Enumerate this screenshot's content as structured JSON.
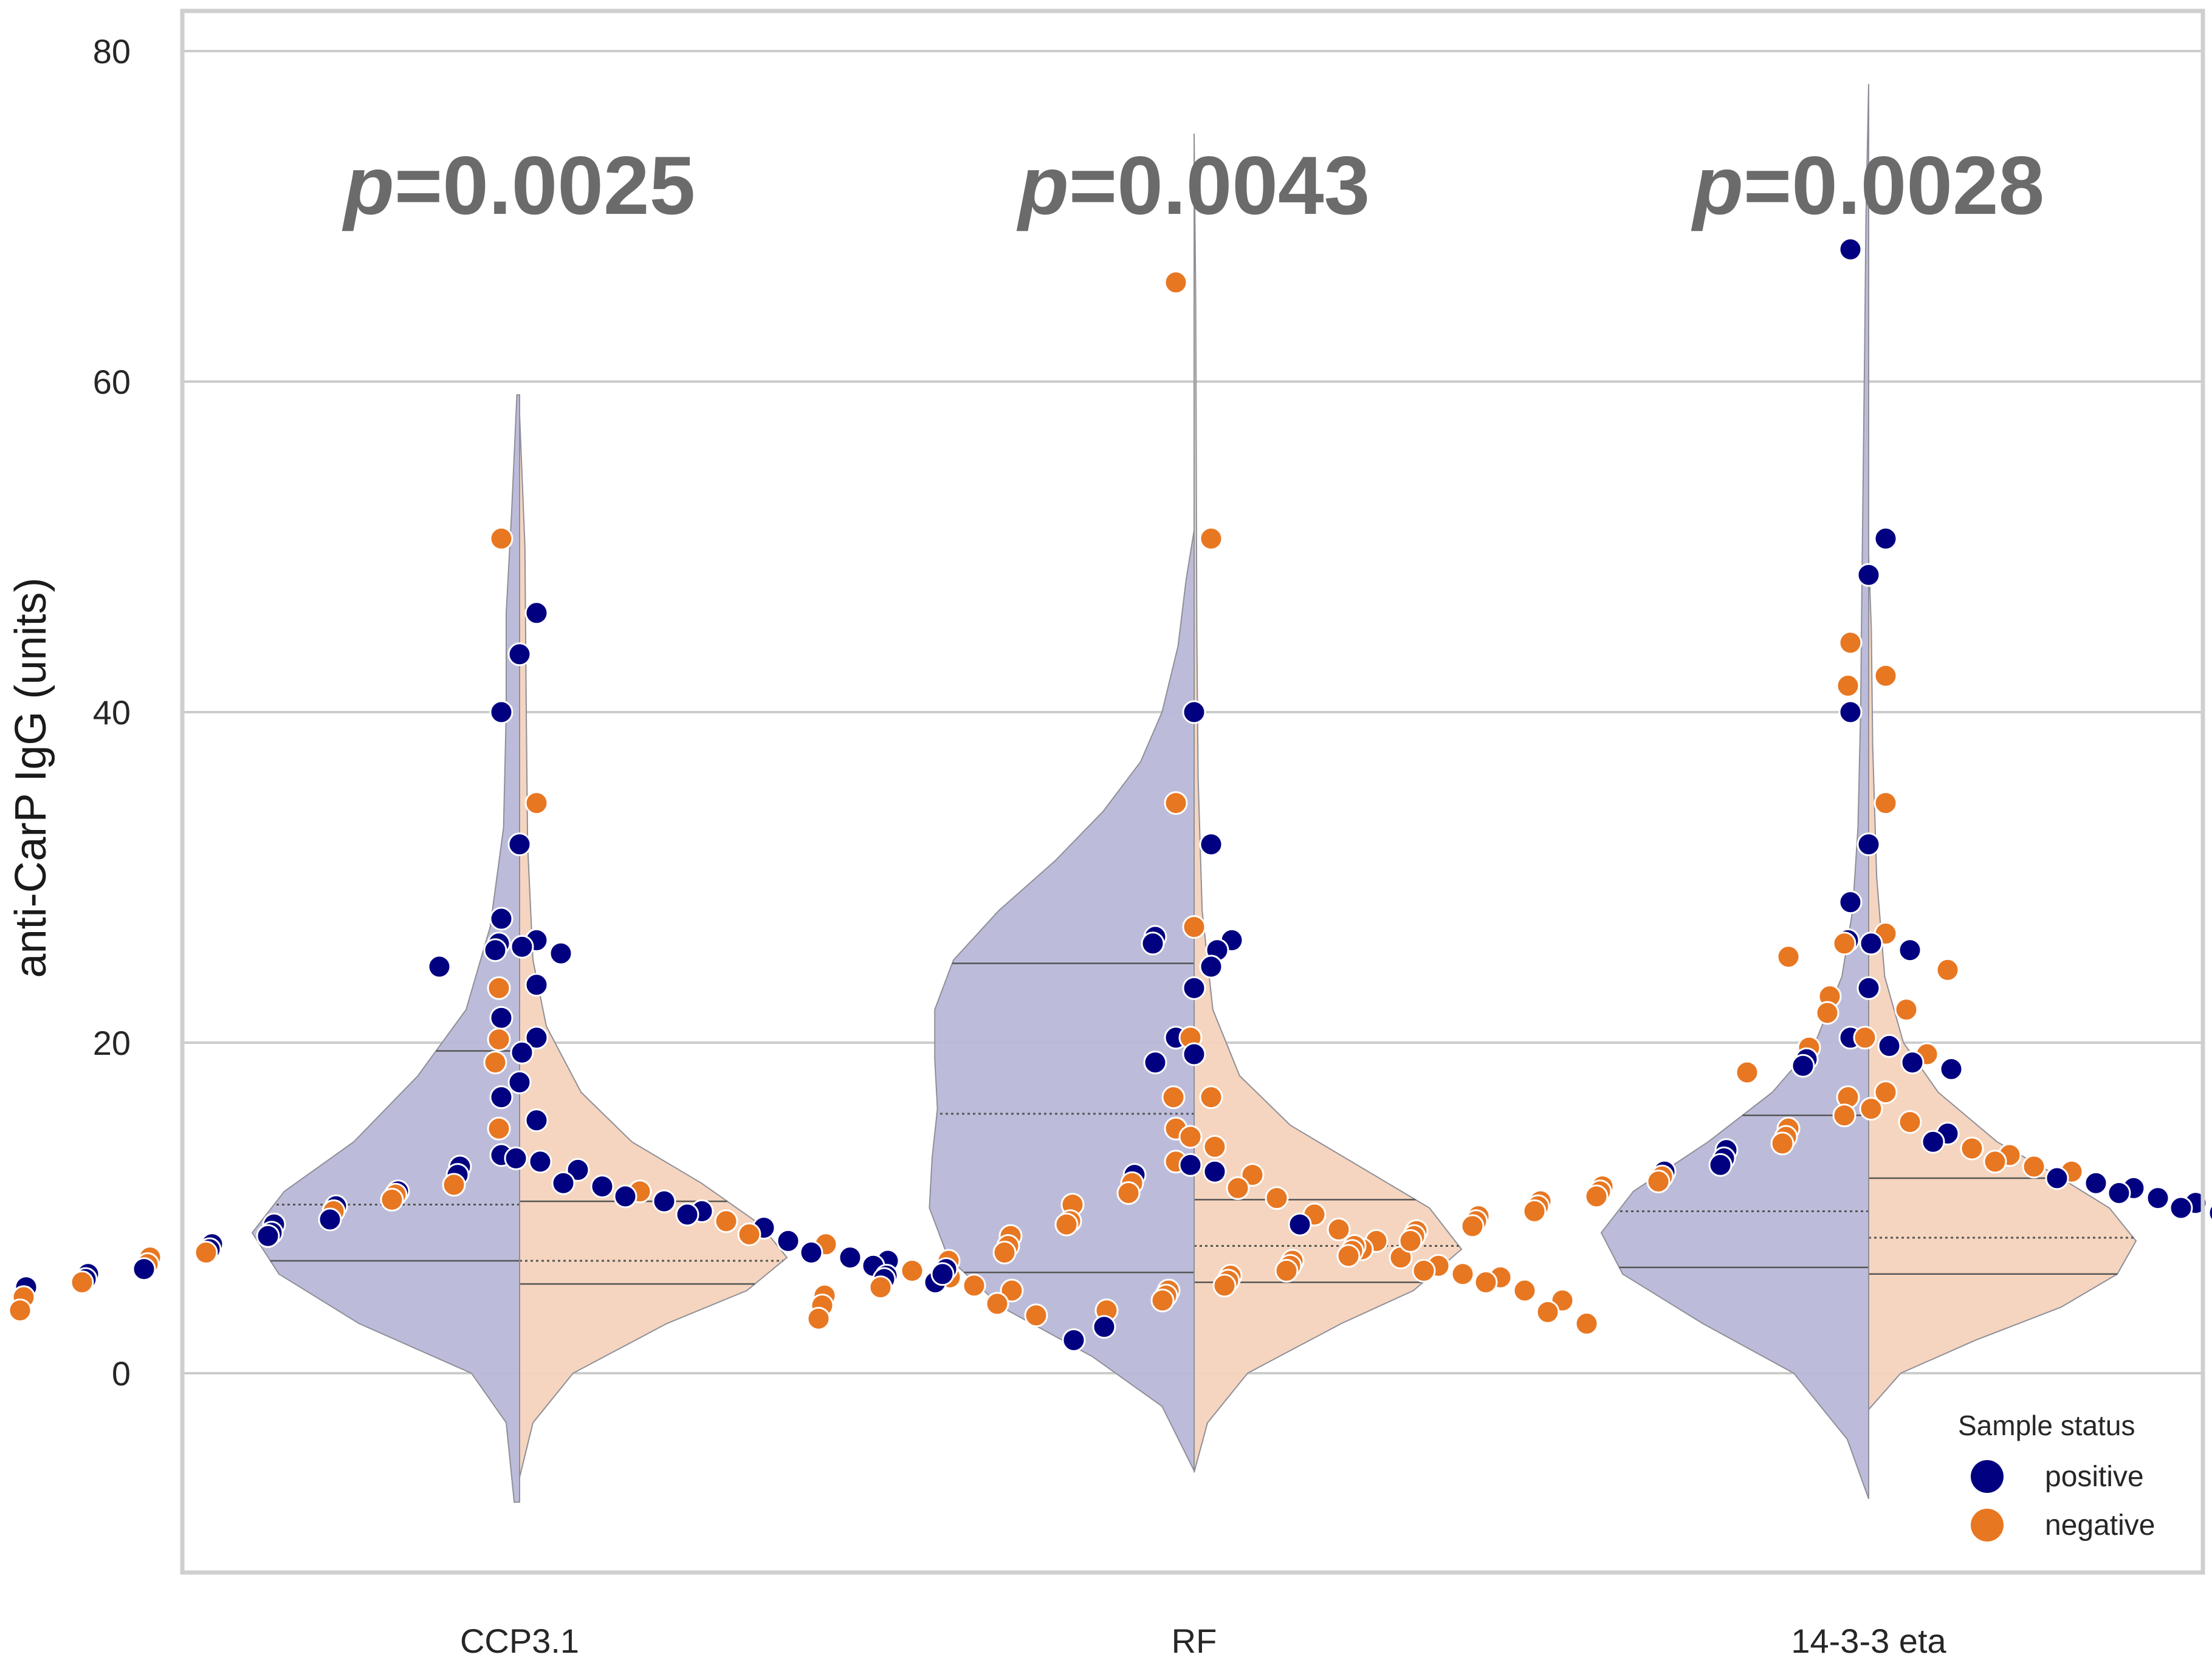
{
  "chart_data": {
    "type": "violin",
    "ylabel": "anti-CarP IgG (units)",
    "xlabel": "",
    "ylim": [
      -12,
      82
    ],
    "yticks": [
      0,
      20,
      40,
      60,
      80
    ],
    "ytick_labels": [
      "0",
      "20",
      "40",
      "60",
      "80"
    ],
    "grid": "horizontal",
    "categories": [
      "CCP3.1",
      "RF",
      "14-3-3 eta"
    ],
    "p_values": [
      {
        "prefix": "p",
        "value": "=0.0025"
      },
      {
        "prefix": "p",
        "value": "=0.0043"
      },
      {
        "prefix": "p",
        "value": "=0.0028"
      }
    ],
    "legend": {
      "title": "Sample status",
      "placement": "bottom-right",
      "entries": [
        {
          "label": "positive",
          "color": "#000080"
        },
        {
          "label": "negative",
          "color": "#e87722"
        }
      ]
    },
    "colors": {
      "positive_point": "#000080",
      "negative_point": "#e87722",
      "positive_violin": "#b8b8d8",
      "negative_violin": "#f4d3bc",
      "pvalue_text": "#6b6b6b"
    },
    "violins": [
      {
        "category": "CCP3.1",
        "positive": {
          "quartiles": [
            6.8,
            10.2,
            19.5
          ],
          "density": [
            [
              -7.8,
              0.02
            ],
            [
              -3,
              0.05
            ],
            [
              0,
              0.18
            ],
            [
              3,
              0.6
            ],
            [
              6,
              0.9
            ],
            [
              8.5,
              1.0
            ],
            [
              11,
              0.88
            ],
            [
              14,
              0.62
            ],
            [
              18,
              0.38
            ],
            [
              22,
              0.2
            ],
            [
              27,
              0.11
            ],
            [
              33,
              0.06
            ],
            [
              40,
              0.05
            ],
            [
              46,
              0.05
            ],
            [
              52,
              0.03
            ],
            [
              59.2,
              0.01
            ]
          ]
        },
        "negative": {
          "quartiles": [
            5.4,
            6.8,
            10.4
          ],
          "density": [
            [
              -6.3,
              0.0
            ],
            [
              -3,
              0.05
            ],
            [
              0,
              0.2
            ],
            [
              3,
              0.55
            ],
            [
              5,
              0.85
            ],
            [
              7,
              1.0
            ],
            [
              9,
              0.9
            ],
            [
              11.5,
              0.68
            ],
            [
              14,
              0.42
            ],
            [
              17,
              0.23
            ],
            [
              21,
              0.1
            ],
            [
              25,
              0.05
            ],
            [
              32,
              0.03
            ],
            [
              40,
              0.025
            ],
            [
              50,
              0.02
            ],
            [
              58,
              0.0
            ]
          ]
        },
        "positive_points": [
          46,
          43.5,
          40,
          32,
          27.5,
          26.2,
          26,
          25.8,
          25.6,
          25.4,
          24.6,
          23.5,
          21.5,
          20.3,
          19.4,
          17.6,
          16.7,
          15.3,
          13.2,
          13,
          12.8,
          12.5,
          12.3,
          12,
          11.5,
          11.3,
          11,
          10.7,
          10.4,
          10.1,
          9.8,
          9.6,
          9.3,
          9,
          8.8,
          8.5,
          8.3,
          8,
          7.8,
          7.5,
          7.3,
          7,
          6.8,
          6.5,
          6.3,
          6,
          5.7,
          5.5,
          5.2,
          2
        ],
        "negative_points": [
          50.5,
          34.5,
          23.3,
          20.2,
          18.8,
          14.8,
          11.4,
          11,
          10.8,
          10.5,
          9.8,
          9.2,
          8.4,
          7.8,
          7.3,
          7,
          6.6,
          6.2,
          5.8,
          5.5,
          5.3,
          5,
          4.6,
          4.2,
          3.8,
          3.5,
          2.8
        ]
      },
      {
        "category": "RF",
        "positive": {
          "quartiles": [
            6.1,
            15.7,
            24.8
          ],
          "density": [
            [
              -5.9,
              0.0
            ],
            [
              -2,
              0.12
            ],
            [
              1,
              0.38
            ],
            [
              4,
              0.72
            ],
            [
              7,
              0.92
            ],
            [
              10,
              0.99
            ],
            [
              13,
              0.98
            ],
            [
              16,
              0.96
            ],
            [
              19,
              0.97
            ],
            [
              22,
              0.97
            ],
            [
              25,
              0.9
            ],
            [
              28,
              0.73
            ],
            [
              31,
              0.52
            ],
            [
              34,
              0.34
            ],
            [
              37,
              0.2
            ],
            [
              40,
              0.12
            ],
            [
              44,
              0.06
            ],
            [
              48,
              0.03
            ],
            [
              51,
              0.0
            ]
          ]
        },
        "negative": {
          "quartiles": [
            5.5,
            7.7,
            10.5
          ],
          "density": [
            [
              -6,
              0.0
            ],
            [
              -3,
              0.05
            ],
            [
              0,
              0.2
            ],
            [
              3,
              0.55
            ],
            [
              5,
              0.82
            ],
            [
              7.5,
              1.0
            ],
            [
              10,
              0.88
            ],
            [
              12.5,
              0.62
            ],
            [
              15,
              0.36
            ],
            [
              18,
              0.17
            ],
            [
              22,
              0.07
            ],
            [
              28,
              0.03
            ],
            [
              36,
              0.015
            ],
            [
              45,
              0.01
            ],
            [
              55,
              0.008
            ],
            [
              65,
              0.006
            ],
            [
              75,
              0.0
            ]
          ]
        },
        "positive_points": [
          40,
          32,
          26.4,
          26.2,
          26,
          25.6,
          24.6,
          23.3,
          20.3,
          19.3,
          18.8,
          12.6,
          12.2,
          12,
          9,
          6.3,
          6,
          5.9,
          5.7
        ],
        "negative_points": [
          66,
          50.5,
          34.5,
          27,
          20.3,
          16.7,
          16.7,
          14.8,
          14.3,
          13.7,
          12.8,
          12,
          11.5,
          11.2,
          10.9,
          10.6,
          10.2,
          9.6,
          9.2,
          9,
          8.7,
          8.3,
          8,
          7.7,
          7.5,
          7.3,
          7,
          6.8,
          6.5,
          6.2,
          6,
          5.8,
          5.5,
          5.2,
          5,
          4.7,
          4.4,
          4.1,
          3.7,
          3.3,
          3
        ]
      },
      {
        "category": "14-3-3 eta",
        "positive": {
          "quartiles": [
            6.4,
            9.8,
            15.6
          ],
          "density": [
            [
              -7.6,
              0.0
            ],
            [
              -4,
              0.08
            ],
            [
              0,
              0.28
            ],
            [
              3,
              0.62
            ],
            [
              6,
              0.92
            ],
            [
              8.5,
              1.0
            ],
            [
              11,
              0.88
            ],
            [
              14,
              0.6
            ],
            [
              17,
              0.36
            ],
            [
              20,
              0.2
            ],
            [
              24,
              0.1
            ],
            [
              28,
              0.06
            ],
            [
              33,
              0.04
            ],
            [
              40,
              0.03
            ],
            [
              48,
              0.025
            ],
            [
              55,
              0.02
            ],
            [
              62,
              0.015
            ],
            [
              70,
              0.01
            ],
            [
              78,
              0.0
            ]
          ]
        },
        "negative": {
          "quartiles": [
            6,
            8.2,
            11.8
          ],
          "density": [
            [
              -2.2,
              0.0
            ],
            [
              0,
              0.12
            ],
            [
              2,
              0.4
            ],
            [
              4,
              0.72
            ],
            [
              6,
              0.93
            ],
            [
              8,
              1.0
            ],
            [
              10,
              0.9
            ],
            [
              12,
              0.7
            ],
            [
              14,
              0.48
            ],
            [
              17,
              0.26
            ],
            [
              20,
              0.13
            ],
            [
              24,
              0.06
            ],
            [
              30,
              0.03
            ],
            [
              38,
              0.015
            ],
            [
              45,
              0.01
            ],
            [
              49.5,
              0.0
            ]
          ]
        },
        "positive_points": [
          68,
          50.5,
          48.3,
          40,
          32,
          28.5,
          26.2,
          26,
          25.6,
          23.3,
          20.3,
          19.8,
          19,
          18.8,
          18.6,
          18.4,
          14.5,
          14,
          13.5,
          13,
          12.6,
          12.2,
          11.8,
          11.5,
          11.2,
          10.9,
          10.6,
          10.3,
          10,
          9.7,
          9.4,
          9.1,
          8.8,
          8.5,
          8.2,
          7.9,
          7.6,
          7.3,
          7,
          6.7,
          6.4,
          6.1,
          5.8,
          5.5,
          5.2,
          4.9,
          4.6,
          2.8
        ],
        "negative_points": [
          44.2,
          42.2,
          41.6,
          34.5,
          26.6,
          26,
          25.2,
          24.4,
          22.8,
          22,
          21.8,
          20.3,
          19.7,
          19.3,
          18.2,
          17,
          16.7,
          16,
          15.6,
          15.2,
          14.8,
          14.3,
          13.9,
          13.6,
          13.2,
          12.8,
          12.5,
          12.2,
          11.9,
          11.6,
          11.3,
          11,
          10.7,
          10.4,
          10.1,
          9.8,
          9.5,
          9.2,
          8.9,
          8.6,
          8.3,
          8,
          7.7,
          7.4,
          7.1,
          6.8,
          6.5,
          6.2,
          5.9,
          5.6,
          5.3,
          5,
          4.7,
          4.4,
          4.1,
          3.8,
          3.5
        ]
      }
    ]
  }
}
